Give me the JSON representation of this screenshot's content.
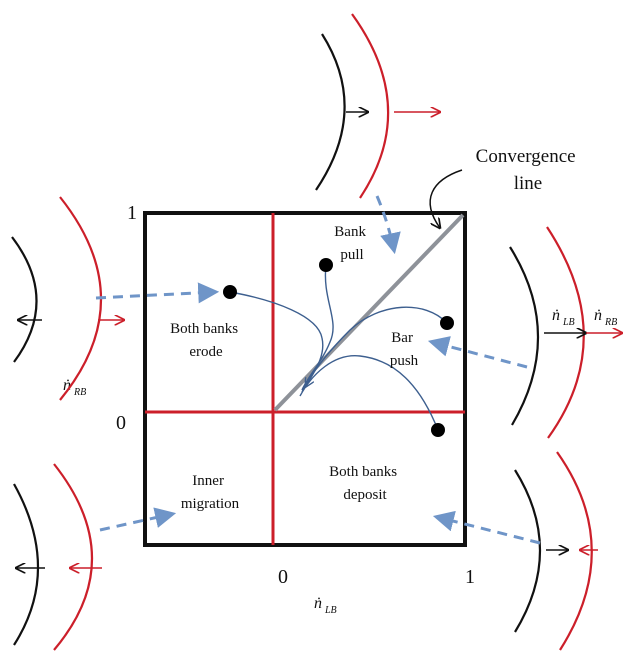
{
  "colors": {
    "frame": "#111111",
    "red": "#cc1f2a",
    "convergence": "#8e9299",
    "trajectory": "#3d5f8f",
    "dashed_arrow": "#6f95c8"
  },
  "axis": {
    "zero_left": "0",
    "one_top": "1",
    "zero_bottom": "0",
    "one_right": "1"
  },
  "rate_labels": {
    "x_axis": {
      "sym": "ṅ",
      "sub": "LB"
    },
    "left_rb": {
      "sym": "ṅ",
      "sub": "RB"
    },
    "right_lb": {
      "sym": "ṅ",
      "sub": "LB"
    },
    "right_rb": {
      "sym": "ṅ",
      "sub": "RB"
    }
  },
  "annotation": {
    "line1": "Convergence",
    "line2": "line"
  },
  "regions": {
    "bank_pull": [
      "Bank",
      "pull"
    ],
    "both_erode": [
      "Both banks",
      "erode"
    ],
    "bar_push": [
      "Bar",
      "push"
    ],
    "inner_migration": [
      "Inner",
      "migration"
    ],
    "both_deposit": [
      "Both banks",
      "deposit"
    ]
  }
}
